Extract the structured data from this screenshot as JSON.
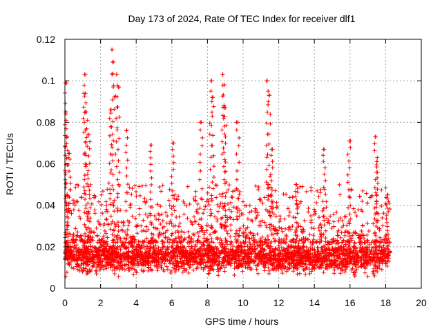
{
  "chart_data": {
    "type": "scatter",
    "title": "Day 173 of 2024, Rate Of TEC Index for receiver dlf1",
    "xlabel": "GPS time / hours",
    "ylabel": "ROTI / TECUs",
    "xlim": [
      0,
      20
    ],
    "ylim": [
      0,
      0.12
    ],
    "xticks": [
      0,
      2,
      4,
      6,
      8,
      10,
      12,
      14,
      16,
      18,
      20
    ],
    "xtick_labels": [
      "0",
      "2",
      "4",
      "6",
      "8",
      "10",
      "12",
      "14",
      "16",
      "18",
      "20"
    ],
    "yticks": [
      0,
      0.02,
      0.04,
      0.06,
      0.08,
      0.1,
      0.12
    ],
    "ytick_labels": [
      "0",
      "0.02",
      "0.04",
      "0.06",
      "0.08",
      "0.1",
      "0.12"
    ],
    "grid": true,
    "marker": "+",
    "color": "#ff0000",
    "series": [
      {
        "name": "ROTI",
        "x_range": [
          0,
          18.25
        ],
        "baseline_band": [
          0.005,
          0.025
        ],
        "peaks": [
          {
            "x": 0.03,
            "y": 0.099
          },
          {
            "x": 0.05,
            "y": 0.085
          },
          {
            "x": 0.1,
            "y": 0.073
          },
          {
            "x": 0.25,
            "y": 0.065
          },
          {
            "x": 1.1,
            "y": 0.103
          },
          {
            "x": 1.15,
            "y": 0.094
          },
          {
            "x": 1.2,
            "y": 0.085
          },
          {
            "x": 1.35,
            "y": 0.074
          },
          {
            "x": 2.55,
            "y": 0.086
          },
          {
            "x": 2.65,
            "y": 0.115
          },
          {
            "x": 2.7,
            "y": 0.109
          },
          {
            "x": 2.9,
            "y": 0.103
          },
          {
            "x": 3.0,
            "y": 0.097
          },
          {
            "x": 3.45,
            "y": 0.076
          },
          {
            "x": 4.85,
            "y": 0.069
          },
          {
            "x": 6.05,
            "y": 0.07
          },
          {
            "x": 7.65,
            "y": 0.08
          },
          {
            "x": 8.2,
            "y": 0.1
          },
          {
            "x": 8.3,
            "y": 0.092
          },
          {
            "x": 8.85,
            "y": 0.103
          },
          {
            "x": 8.95,
            "y": 0.098
          },
          {
            "x": 9.0,
            "y": 0.087
          },
          {
            "x": 9.7,
            "y": 0.08
          },
          {
            "x": 11.35,
            "y": 0.1
          },
          {
            "x": 11.45,
            "y": 0.093
          },
          {
            "x": 11.6,
            "y": 0.067
          },
          {
            "x": 13.0,
            "y": 0.05
          },
          {
            "x": 14.55,
            "y": 0.067
          },
          {
            "x": 15.95,
            "y": 0.071
          },
          {
            "x": 17.45,
            "y": 0.073
          },
          {
            "x": 17.5,
            "y": 0.061
          },
          {
            "x": 18.1,
            "y": 0.045
          }
        ]
      }
    ]
  }
}
